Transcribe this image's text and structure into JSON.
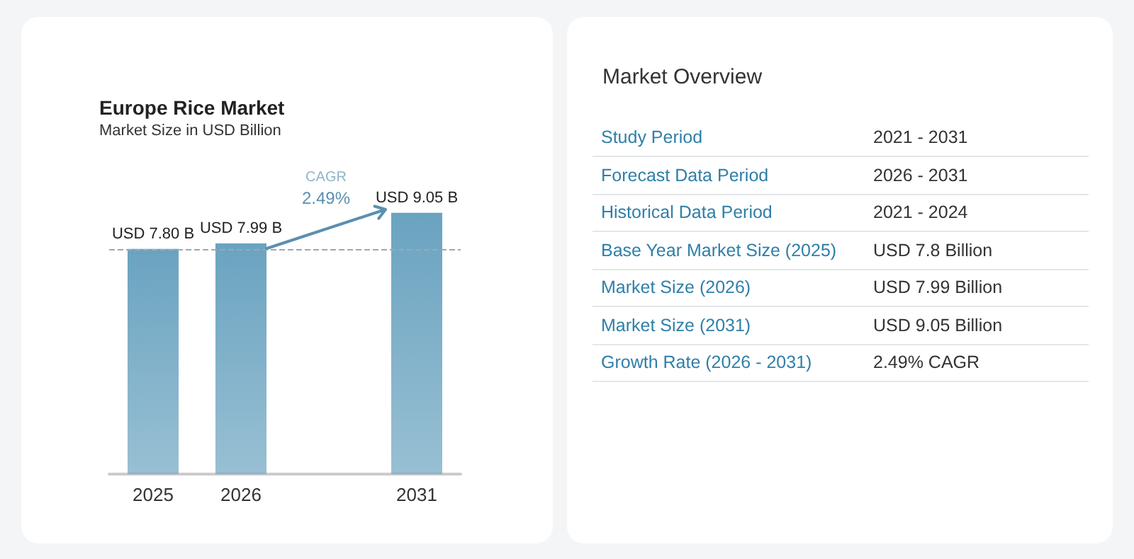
{
  "chart_data": [
    {
      "type": "bar",
      "title": "Europe Rice Market",
      "subtitle": "Market Size in USD Billion",
      "categories": [
        "2025",
        "2026",
        null,
        "2031"
      ],
      "values": [
        7.8,
        7.99,
        null,
        9.05
      ],
      "value_labels": [
        "USD 7.80 B",
        "USD 7.99 B",
        null,
        "USD 9.05 B"
      ],
      "color": "#6aa3c0",
      "ref_lines": [
        {
          "axis": "y",
          "value": 7.8,
          "line_style": "dashed",
          "color": "#9aaab4"
        }
      ],
      "annotations": [
        "CAGR",
        "2.49%"
      ]
    },
    {
      "type": "other",
      "title": "Market Overview",
      "annotations": [
        "Study Period",
        "2021 - 2031",
        "Forecast Data Period",
        "2026 - 2031",
        "Historical Data Period",
        "2021 - 2024",
        "Base Year Market Size (2025)",
        "USD 7.8 Billion",
        "Market Size (2026)",
        "USD 7.99 Billion",
        "Market Size (2031)",
        "USD 9.05 Billion",
        "Growth Rate (2026 - 2031)",
        "2.49% CAGR"
      ]
    }
  ]
}
